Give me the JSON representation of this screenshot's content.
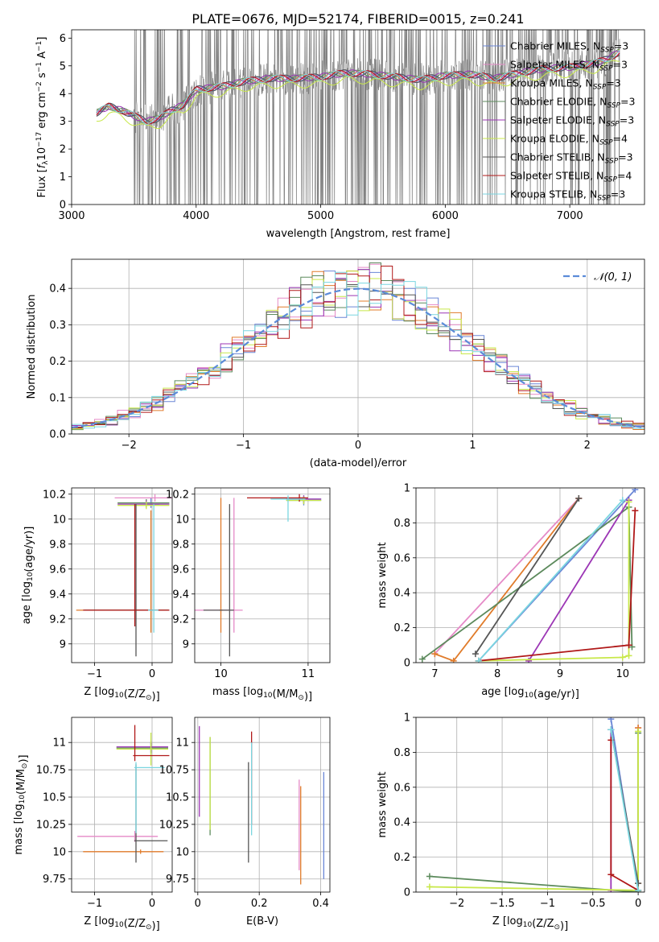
{
  "figure": {
    "title": "PLATE=0676, MJD=52174, FIBERID=0015, z=0.241"
  },
  "colors": {
    "Chabrier MILES": "#6a86d6",
    "Salpeter MILES": "#e58ac7",
    "Kroupa MILES": "#e07b2a",
    "Chabrier ELODIE": "#5c8a5c",
    "Salpeter ELODIE": "#9c36b5",
    "Kroupa ELODIE": "#c8e84a",
    "Chabrier STELIB": "#555555",
    "Salpeter STELIB": "#b01818",
    "Kroupa STELIB": "#7ad6e0",
    "normal": "#5b8bd8",
    "data": "#808080"
  },
  "chart_data": [
    {
      "id": "spectrum",
      "type": "line",
      "xlabel": "wavelength [Angstrom, rest frame]",
      "ylabel_main": "Flux [",
      "ylabel_sub": "f_λ 10^-17 erg cm^-2 s^-1 A^-1",
      "xlim": [
        3000,
        7600
      ],
      "ylim": [
        0,
        6.3
      ],
      "xticks": [
        3000,
        4000,
        5000,
        6000,
        7000
      ],
      "yticks": [
        0,
        1,
        2,
        3,
        4,
        5,
        6
      ],
      "data_range": [
        3200,
        7400
      ],
      "noisy_range": [
        3500,
        7400
      ],
      "continuum": [
        [
          3200,
          3.3
        ],
        [
          3300,
          3.55
        ],
        [
          3400,
          3.4
        ],
        [
          3500,
          3.2
        ],
        [
          3600,
          3.0
        ],
        [
          3700,
          3.1
        ],
        [
          3800,
          3.4
        ],
        [
          3900,
          3.6
        ],
        [
          4000,
          4.15
        ],
        [
          4200,
          4.25
        ],
        [
          4400,
          4.45
        ],
        [
          4600,
          4.55
        ],
        [
          4800,
          4.55
        ],
        [
          5000,
          4.6
        ],
        [
          5200,
          4.75
        ],
        [
          5400,
          4.7
        ],
        [
          5600,
          4.6
        ],
        [
          5800,
          4.5
        ],
        [
          6000,
          4.65
        ],
        [
          6200,
          4.7
        ],
        [
          6400,
          4.55
        ],
        [
          6600,
          4.75
        ],
        [
          6800,
          4.9
        ],
        [
          7000,
          4.95
        ],
        [
          7200,
          5.1
        ],
        [
          7300,
          5.25
        ],
        [
          7400,
          5.5
        ]
      ],
      "legend": [
        {
          "name": "Chabrier MILES",
          "nssp": "3"
        },
        {
          "name": "Salpeter MILES",
          "nssp": "3"
        },
        {
          "name": "Kroupa MILES",
          "nssp": "3"
        },
        {
          "name": "Chabrier ELODIE",
          "nssp": "3"
        },
        {
          "name": "Salpeter ELODIE",
          "nssp": "3"
        },
        {
          "name": "Kroupa ELODIE",
          "nssp": "4"
        },
        {
          "name": "Chabrier STELIB",
          "nssp": "3"
        },
        {
          "name": "Salpeter STELIB",
          "nssp": "4"
        },
        {
          "name": "Kroupa STELIB",
          "nssp": "3"
        }
      ]
    },
    {
      "id": "residual_hist",
      "type": "line",
      "xlabel": "(data-model)/error",
      "ylabel": "Normed distribution",
      "xlim": [
        -2.5,
        2.5
      ],
      "ylim": [
        0,
        0.48
      ],
      "xticks": [
        -2,
        -1,
        0,
        1,
        2
      ],
      "yticks": [
        0.0,
        0.1,
        0.2,
        0.3,
        0.4
      ],
      "bin_width": 0.1,
      "bin_start": -2.5,
      "legend": "𝒩(0, 1)",
      "normal": {
        "mean": 0,
        "sigma": 1
      }
    },
    {
      "id": "age_vs_Z",
      "type": "scatter",
      "xlabel": "Z [log10(Z/Z☉)]",
      "ylabel": "age  [log10(age/yr)]",
      "xlim": [
        -1.4,
        0.35
      ],
      "ylim": [
        8.85,
        10.25
      ],
      "xticks": [
        -1,
        0
      ],
      "yticks": [
        9.0,
        9.2,
        9.4,
        9.6,
        9.8,
        10.0,
        10.2
      ],
      "points": [
        {
          "m": "Chabrier MILES",
          "x": -0.02,
          "xerr": [
            0.1,
            0.15
          ],
          "y": 10.12,
          "yerr": [
            0.03,
            0.05
          ]
        },
        {
          "m": "Salpeter MILES",
          "x": 0.05,
          "xerr": [
            0.7,
            0.3
          ],
          "y": 10.17,
          "yerr": [
            0.03,
            0.03
          ]
        },
        {
          "m": "Kroupa MILES",
          "x": -0.02,
          "xerr": [
            1.3,
            0.3
          ],
          "y": 9.27,
          "yerr": [
            0.18,
            0.8
          ]
        },
        {
          "m": "Chabrier ELODIE",
          "x": -0.1,
          "xerr": [
            0.5,
            0.4
          ],
          "y": 10.13,
          "yerr": [
            0.03,
            0.03
          ]
        },
        {
          "m": "Salpeter ELODIE",
          "x": -0.1,
          "xerr": [
            0.5,
            0.4
          ],
          "y": 10.12,
          "yerr": [
            0.03,
            0.03
          ]
        },
        {
          "m": "Kroupa ELODIE",
          "x": -0.1,
          "xerr": [
            0.5,
            0.4
          ],
          "y": 10.11,
          "yerr": [
            0.03,
            0.03
          ]
        },
        {
          "m": "Chabrier STELIB",
          "x": -0.28,
          "xerr": [
            0.9,
            0.58
          ],
          "y": 9.27,
          "yerr": [
            0.37,
            0.85
          ]
        },
        {
          "m": "Salpeter STELIB",
          "x": -0.3,
          "xerr": [
            0.9,
            0.6
          ],
          "y": 9.27,
          "yerr": [
            0.13,
            0.85
          ]
        },
        {
          "m": "Kroupa STELIB",
          "x": 0.03,
          "xerr": [
            0.1,
            0.08
          ],
          "y": 9.27,
          "yerr": [
            0.18,
            0.85
          ]
        }
      ]
    },
    {
      "id": "age_vs_mass",
      "type": "scatter",
      "xlabel": "mass [log10(M/M☉)]",
      "ylabel": "",
      "xlim": [
        9.7,
        11.25
      ],
      "ylim": [
        8.85,
        10.25
      ],
      "xticks": [
        10,
        11
      ],
      "yticks": [
        9.0,
        9.2,
        9.4,
        9.6,
        9.8,
        10.0,
        10.2
      ],
      "points": [
        {
          "m": "Chabrier MILES",
          "x": 10.95,
          "xerr": [
            0.2,
            0.2
          ],
          "y": 10.16,
          "yerr": [
            0.05,
            0.03
          ]
        },
        {
          "m": "Salpeter MILES",
          "x": 10.15,
          "xerr": [
            0.45,
            0.1
          ],
          "y": 9.27,
          "yerr": [
            0.18,
            0.9
          ]
        },
        {
          "m": "Kroupa MILES",
          "x": 10.0,
          "xerr": [
            0.02,
            0.02
          ],
          "y": 9.27,
          "yerr": [
            0.18,
            0.9
          ]
        },
        {
          "m": "Chabrier ELODIE",
          "x": 10.95,
          "xerr": [
            0.2,
            0.2
          ],
          "y": 10.15,
          "yerr": [
            0.03,
            0.03
          ]
        },
        {
          "m": "Salpeter ELODIE",
          "x": 10.95,
          "xerr": [
            0.2,
            0.2
          ],
          "y": 10.16,
          "yerr": [
            0.03,
            0.03
          ]
        },
        {
          "m": "Kroupa ELODIE",
          "x": 10.95,
          "xerr": [
            0.2,
            0.2
          ],
          "y": 10.15,
          "yerr": [
            0.03,
            0.03
          ]
        },
        {
          "m": "Chabrier STELIB",
          "x": 10.1,
          "xerr": [
            0.3,
            0.05
          ],
          "y": 9.27,
          "yerr": [
            0.37,
            0.85
          ]
        },
        {
          "m": "Salpeter STELIB",
          "x": 10.9,
          "xerr": [
            0.6,
            0.1
          ],
          "y": 10.17,
          "yerr": [
            0.03,
            0.03
          ]
        },
        {
          "m": "Kroupa STELIB",
          "x": 10.77,
          "xerr": [
            0.2,
            0.2
          ],
          "y": 10.16,
          "yerr": [
            0.18,
            0.03
          ]
        }
      ]
    },
    {
      "id": "sfh_age",
      "type": "line",
      "xlabel": "age  [log10(age/yr)]",
      "ylabel": "mass weight",
      "xlim": [
        6.7,
        10.35
      ],
      "ylim": [
        0,
        1.0
      ],
      "xticks": [
        7,
        8,
        9,
        10
      ],
      "yticks": [
        0.0,
        0.2,
        0.4,
        0.6,
        0.8,
        1.0
      ],
      "series": [
        {
          "m": "Chabrier MILES",
          "x": [
            7.7,
            10.2
          ],
          "y": [
            0.01,
            0.99
          ]
        },
        {
          "m": "Salpeter MILES",
          "x": [
            7.0,
            9.3
          ],
          "y": [
            0.05,
            0.94
          ]
        },
        {
          "m": "Kroupa MILES",
          "x": [
            7.0,
            7.3,
            9.3
          ],
          "y": [
            0.05,
            0.01,
            0.94
          ]
        },
        {
          "m": "Chabrier ELODIE",
          "x": [
            6.8,
            10.1,
            10.15
          ],
          "y": [
            0.02,
            0.89,
            0.09
          ]
        },
        {
          "m": "Salpeter ELODIE",
          "x": [
            8.5,
            10.1
          ],
          "y": [
            0.01,
            0.93
          ]
        },
        {
          "m": "Kroupa ELODIE",
          "x": [
            7.7,
            10.0,
            10.1,
            10.1
          ],
          "y": [
            0.01,
            0.03,
            0.04,
            0.92
          ]
        },
        {
          "m": "Chabrier STELIB",
          "x": [
            7.65,
            9.3
          ],
          "y": [
            0.05,
            0.94
          ]
        },
        {
          "m": "Salpeter STELIB",
          "x": [
            7.7,
            10.1,
            10.2
          ],
          "y": [
            0.01,
            0.1,
            0.87
          ]
        },
        {
          "m": "Kroupa STELIB",
          "x": [
            7.7,
            10.0
          ],
          "y": [
            0.01,
            0.93
          ]
        }
      ]
    },
    {
      "id": "mass_vs_Z",
      "type": "scatter",
      "xlabel": "Z [log10(Z/Z☉)]",
      "ylabel": "mass [log10(M/M☉)]",
      "xlim": [
        -1.4,
        0.35
      ],
      "ylim": [
        9.63,
        11.23
      ],
      "xticks": [
        -1,
        0
      ],
      "yticks": [
        9.75,
        10.0,
        10.25,
        10.5,
        10.75,
        11.0
      ],
      "points": [
        {
          "m": "Chabrier MILES",
          "x": -0.02,
          "xerr": [
            0.3,
            0.3
          ],
          "y": 10.95,
          "yerr": [
            0.05,
            0.05
          ]
        },
        {
          "m": "Salpeter MILES",
          "x": -0.3,
          "xerr": [
            1.0,
            0.4
          ],
          "y": 10.14,
          "yerr": [
            0.05,
            0.05
          ]
        },
        {
          "m": "Kroupa MILES",
          "x": -0.2,
          "xerr": [
            1.0,
            0.4
          ],
          "y": 10.0,
          "yerr": [
            0.02,
            0.02
          ]
        },
        {
          "m": "Chabrier ELODIE",
          "x": -0.02,
          "xerr": [
            0.6,
            0.3
          ],
          "y": 10.95,
          "yerr": [
            0.05,
            0.05
          ]
        },
        {
          "m": "Salpeter ELODIE",
          "x": -0.02,
          "xerr": [
            0.6,
            0.3
          ],
          "y": 10.96,
          "yerr": [
            0.05,
            0.05
          ]
        },
        {
          "m": "Kroupa ELODIE",
          "x": -0.02,
          "xerr": [
            0.6,
            0.3
          ],
          "y": 10.94,
          "yerr": [
            0.15,
            0.15
          ]
        },
        {
          "m": "Chabrier STELIB",
          "x": -0.28,
          "xerr": [
            0.03,
            0.55
          ],
          "y": 10.1,
          "yerr": [
            0.2,
            0.7
          ]
        },
        {
          "m": "Salpeter STELIB",
          "x": -0.3,
          "xerr": [
            0.03,
            0.6
          ],
          "y": 10.88,
          "yerr": [
            0.05,
            0.28
          ]
        },
        {
          "m": "Kroupa STELIB",
          "x": -0.28,
          "xerr": [
            0.03,
            0.5
          ],
          "y": 10.77,
          "yerr": [
            0.6,
            0.05
          ]
        }
      ]
    },
    {
      "id": "mass_vs_EBV",
      "type": "scatter",
      "xlabel": "E(B-V)",
      "ylabel": "",
      "xlim": [
        -0.01,
        0.43
      ],
      "ylim": [
        9.63,
        11.23
      ],
      "xticks": [
        0.0,
        0.2,
        0.4
      ],
      "yticks": [
        9.75,
        10.0,
        10.25,
        10.5,
        10.75,
        11.0
      ],
      "points": [
        {
          "m": "Chabrier MILES",
          "x": 0.41,
          "y": 10.25,
          "yerr": [
            0.5,
            0.48
          ]
        },
        {
          "m": "Salpeter MILES",
          "x": 0.33,
          "y": 10.28,
          "yerr": [
            0.45,
            0.38
          ]
        },
        {
          "m": "Kroupa MILES",
          "x": 0.335,
          "y": 10.15,
          "yerr": [
            0.45,
            0.45
          ]
        },
        {
          "m": "Chabrier ELODIE",
          "x": 0.04,
          "y": 10.6,
          "yerr": [
            0.45,
            0.45
          ]
        },
        {
          "m": "Salpeter ELODIE",
          "x": 0.005,
          "y": 10.7,
          "yerr": [
            0.38,
            0.45
          ]
        },
        {
          "m": "Kroupa ELODIE",
          "x": 0.04,
          "y": 10.6,
          "yerr": [
            0.4,
            0.45
          ]
        },
        {
          "m": "Chabrier STELIB",
          "x": 0.165,
          "y": 10.4,
          "yerr": [
            0.5,
            0.42
          ]
        },
        {
          "m": "Salpeter STELIB",
          "x": 0.175,
          "y": 10.65,
          "yerr": [
            0.4,
            0.45
          ]
        },
        {
          "m": "Kroupa STELIB",
          "x": 0.175,
          "y": 10.55,
          "yerr": [
            0.4,
            0.45
          ]
        }
      ]
    },
    {
      "id": "sfh_Z",
      "type": "line",
      "xlabel": "Z [log10(Z/Z☉)]",
      "ylabel": "mass weight",
      "xlim": [
        -2.45,
        0.07
      ],
      "ylim": [
        0,
        1.0
      ],
      "xticks": [
        -2.0,
        -1.5,
        -1.0,
        -0.5,
        0.0
      ],
      "yticks": [
        0.0,
        0.2,
        0.4,
        0.6,
        0.8,
        1.0
      ],
      "series": [
        {
          "m": "Chabrier MILES",
          "x": [
            -0.3,
            0.0
          ],
          "y": [
            0.99,
            0.01
          ]
        },
        {
          "m": "Salpeter MILES",
          "x": [
            0.0,
            0.0
          ],
          "y": [
            0.01,
            0.94
          ]
        },
        {
          "m": "Kroupa MILES",
          "x": [
            0.0,
            0.0
          ],
          "y": [
            0.05,
            0.94
          ]
        },
        {
          "m": "Chabrier ELODIE",
          "x": [
            -2.3,
            0.0,
            0.0
          ],
          "y": [
            0.09,
            0.0,
            0.91
          ]
        },
        {
          "m": "Salpeter ELODIE",
          "x": [
            -0.3,
            -0.3
          ],
          "y": [
            0.01,
            0.93
          ]
        },
        {
          "m": "Kroupa ELODIE",
          "x": [
            -2.3,
            0.0,
            0.0
          ],
          "y": [
            0.03,
            0.01,
            0.92
          ]
        },
        {
          "m": "Chabrier STELIB",
          "x": [
            -0.3,
            0.0
          ],
          "y": [
            0.93,
            0.05
          ]
        },
        {
          "m": "Salpeter STELIB",
          "x": [
            -0.3,
            -0.3,
            0.0
          ],
          "y": [
            0.87,
            0.1,
            0.01
          ]
        },
        {
          "m": "Kroupa STELIB",
          "x": [
            -0.3,
            0.0
          ],
          "y": [
            0.93,
            0.01
          ]
        }
      ]
    }
  ]
}
